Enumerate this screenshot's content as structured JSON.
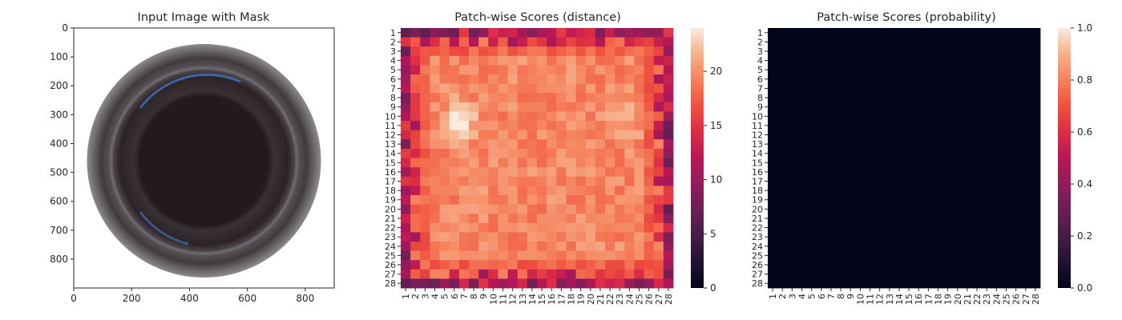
{
  "chart_data": [
    {
      "type": "image",
      "title": "Input Image with Mask",
      "xlim": [
        0,
        900
      ],
      "ylim": [
        900,
        0
      ],
      "xticks": [
        "0",
        "200",
        "400",
        "600",
        "800"
      ],
      "yticks": [
        "0",
        "100",
        "200",
        "300",
        "400",
        "500",
        "600",
        "700",
        "800"
      ],
      "grid": false
    },
    {
      "type": "heatmap",
      "title": "Patch-wise Scores (distance)",
      "x_categories": [
        "1",
        "2",
        "3",
        "4",
        "5",
        "6",
        "7",
        "8",
        "9",
        "10",
        "11",
        "12",
        "13",
        "14",
        "15",
        "16",
        "17",
        "18",
        "19",
        "20",
        "21",
        "22",
        "23",
        "24",
        "25",
        "26",
        "27",
        "28"
      ],
      "y_categories": [
        "1",
        "2",
        "3",
        "4",
        "5",
        "6",
        "7",
        "8",
        "9",
        "10",
        "11",
        "12",
        "13",
        "14",
        "15",
        "16",
        "17",
        "18",
        "19",
        "20",
        "21",
        "22",
        "23",
        "24",
        "25",
        "26",
        "27",
        "28"
      ],
      "colorbar": {
        "min": 0,
        "max": 24,
        "ticks": [
          "0",
          "5",
          "10",
          "15",
          "20"
        ],
        "colormap": "rocket"
      },
      "values_description": "28x28 grid; border cells roughly 5-15, interior roughly 17-22, brightest (~24) near rows 9-12, columns 5-7"
    },
    {
      "type": "heatmap",
      "title": "Patch-wise Scores (probability)",
      "x_categories": [
        "1",
        "2",
        "3",
        "4",
        "5",
        "6",
        "7",
        "8",
        "9",
        "10",
        "11",
        "12",
        "13",
        "14",
        "15",
        "16",
        "17",
        "18",
        "19",
        "20",
        "21",
        "22",
        "23",
        "24",
        "25",
        "26",
        "27",
        "28"
      ],
      "y_categories": [
        "1",
        "2",
        "3",
        "4",
        "5",
        "6",
        "7",
        "8",
        "9",
        "10",
        "11",
        "12",
        "13",
        "14",
        "15",
        "16",
        "17",
        "18",
        "19",
        "20",
        "21",
        "22",
        "23",
        "24",
        "25",
        "26",
        "27",
        "28"
      ],
      "colorbar": {
        "min": 0,
        "max": 1,
        "ticks": [
          "0.0",
          "0.2",
          "0.4",
          "0.6",
          "0.8",
          "1.0"
        ],
        "colormap": "rocket"
      },
      "values_description": "all 28x28 cells approximately 0.0"
    }
  ]
}
